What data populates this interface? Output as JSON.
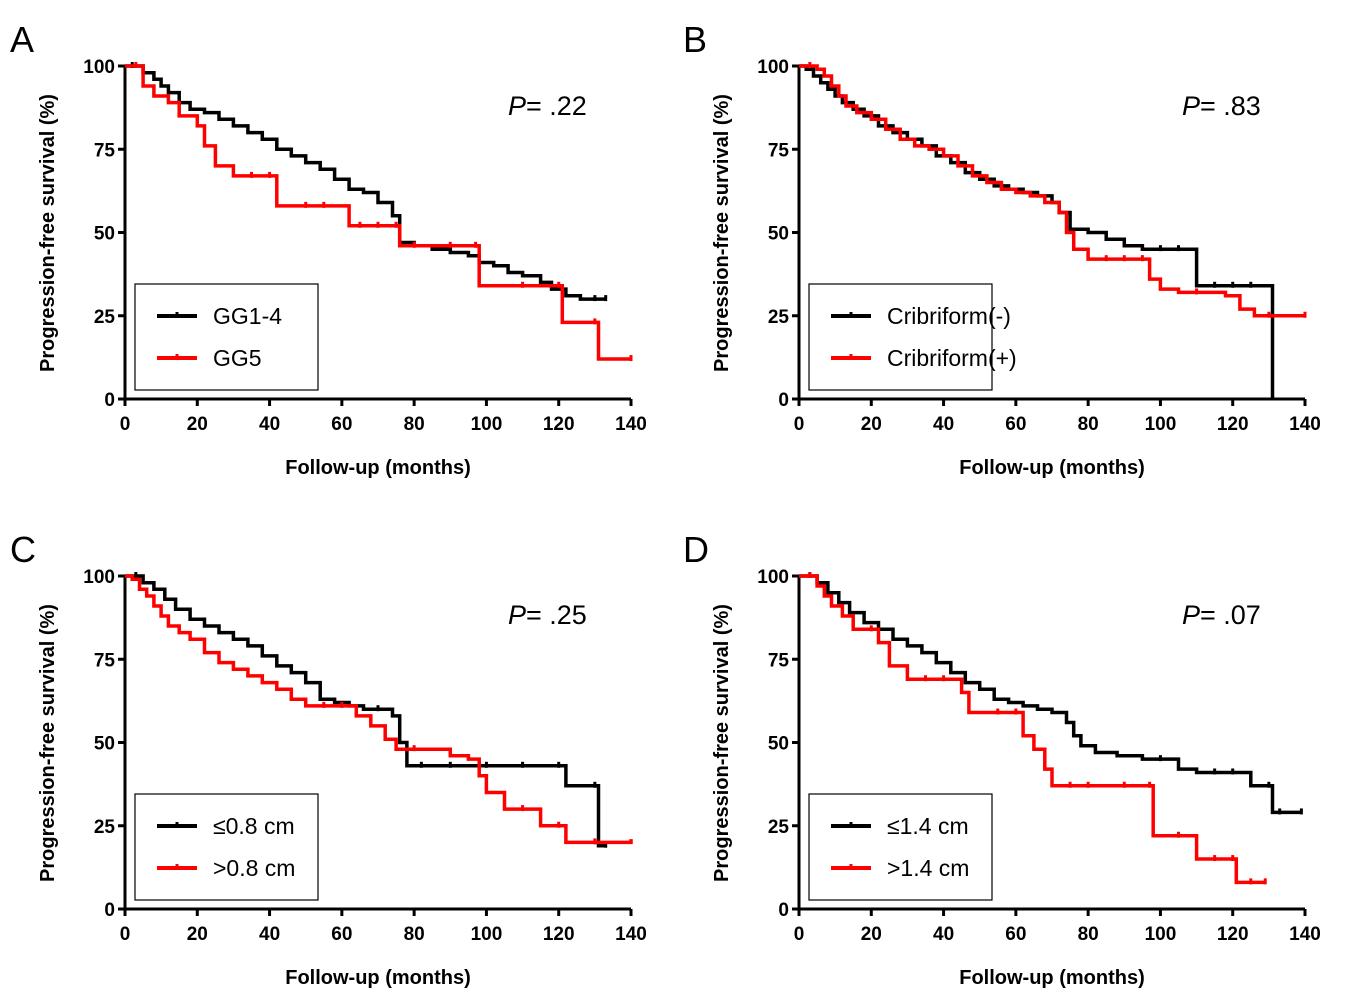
{
  "colors": {
    "black_series": "#000000",
    "red_series": "#ff0000"
  },
  "chart_data": [
    {
      "type": "line",
      "panel": "A",
      "xlabel": "Follow-up (months)",
      "ylabel": "Progression-free survival (%)",
      "xlim": [
        0,
        140
      ],
      "ylim": [
        0,
        100
      ],
      "xticks": [
        0,
        20,
        40,
        60,
        80,
        100,
        120,
        140
      ],
      "yticks": [
        0,
        25,
        50,
        75,
        100
      ],
      "p_prefix": "P",
      "p_value": "= .22",
      "legend_placement": "bottom-left",
      "series": [
        {
          "name": "GG1-4",
          "color": "#000000",
          "x": [
            0,
            2,
            5,
            8,
            10,
            12,
            15,
            18,
            22,
            26,
            30,
            34,
            38,
            42,
            46,
            50,
            54,
            58,
            62,
            66,
            70,
            74,
            76,
            80,
            85,
            90,
            95,
            98,
            102,
            106,
            110,
            115,
            118,
            122,
            126,
            130,
            133
          ],
          "y": [
            100,
            100,
            98,
            96,
            94,
            92,
            89,
            87,
            86,
            84,
            82,
            80,
            78,
            75,
            73,
            71,
            69,
            66,
            63,
            62,
            59,
            55,
            47,
            46,
            45,
            44,
            43,
            41,
            40,
            38,
            37,
            35,
            33,
            31,
            30,
            30,
            30
          ]
        },
        {
          "name": "GG5",
          "color": "#ff0000",
          "x": [
            0,
            3,
            5,
            8,
            12,
            15,
            20,
            22,
            25,
            30,
            35,
            40,
            42,
            50,
            55,
            62,
            65,
            70,
            75,
            76,
            80,
            90,
            97,
            98,
            110,
            120,
            121,
            130,
            131,
            140
          ],
          "y": [
            100,
            100,
            94,
            91,
            89,
            85,
            82,
            76,
            70,
            67,
            67,
            67,
            58,
            58,
            58,
            52,
            52,
            52,
            52,
            46,
            46,
            46,
            46,
            34,
            34,
            34,
            23,
            23,
            12,
            12
          ]
        }
      ]
    },
    {
      "type": "line",
      "panel": "B",
      "xlabel": "Follow-up (months)",
      "ylabel": "Progression-free survival (%)",
      "xlim": [
        0,
        140
      ],
      "ylim": [
        0,
        100
      ],
      "xticks": [
        0,
        20,
        40,
        60,
        80,
        100,
        120,
        140
      ],
      "yticks": [
        0,
        25,
        50,
        75,
        100
      ],
      "p_prefix": "P",
      "p_value": "= .83",
      "legend_placement": "bottom-left",
      "series": [
        {
          "name": "Cribriform(-)",
          "color": "#000000",
          "x": [
            0,
            2,
            4,
            6,
            8,
            10,
            12,
            15,
            18,
            22,
            26,
            30,
            34,
            38,
            42,
            46,
            50,
            54,
            58,
            62,
            66,
            70,
            72,
            75,
            80,
            85,
            90,
            95,
            100,
            105,
            110,
            115,
            120,
            125,
            131
          ],
          "y": [
            100,
            99,
            97,
            95,
            93,
            91,
            89,
            87,
            85,
            82,
            80,
            78,
            76,
            73,
            71,
            68,
            66,
            64,
            63,
            62,
            61,
            59,
            56,
            51,
            50,
            48,
            46,
            45,
            45,
            45,
            34,
            34,
            34,
            34,
            0
          ]
        },
        {
          "name": "Cribriform(+)",
          "color": "#ff0000",
          "x": [
            0,
            3,
            5,
            7,
            9,
            11,
            13,
            16,
            20,
            24,
            28,
            32,
            36,
            40,
            44,
            48,
            52,
            56,
            60,
            64,
            68,
            72,
            74,
            76,
            80,
            85,
            90,
            95,
            97,
            100,
            105,
            110,
            118,
            122,
            126,
            130,
            140
          ],
          "y": [
            100,
            100,
            99,
            97,
            94,
            91,
            88,
            86,
            84,
            81,
            78,
            76,
            75,
            73,
            70,
            67,
            65,
            63,
            62,
            61,
            59,
            56,
            50,
            45,
            42,
            42,
            42,
            42,
            36,
            33,
            32,
            32,
            31,
            27,
            25,
            25,
            25
          ]
        }
      ]
    },
    {
      "type": "line",
      "panel": "C",
      "xlabel": "Follow-up (months)",
      "ylabel": "Progression-free survival (%)",
      "xlim": [
        0,
        140
      ],
      "ylim": [
        0,
        100
      ],
      "xticks": [
        0,
        20,
        40,
        60,
        80,
        100,
        120,
        140
      ],
      "yticks": [
        0,
        25,
        50,
        75,
        100
      ],
      "p_prefix": "P",
      "p_value": "= .25",
      "legend_placement": "bottom-left",
      "series": [
        {
          "name": "≤0.8 cm",
          "color": "#000000",
          "x": [
            0,
            3,
            5,
            8,
            11,
            14,
            18,
            22,
            26,
            30,
            34,
            38,
            42,
            46,
            50,
            54,
            58,
            62,
            66,
            70,
            74,
            76,
            78,
            82,
            90,
            100,
            110,
            120,
            122,
            130,
            131,
            133
          ],
          "y": [
            100,
            100,
            98,
            96,
            93,
            90,
            87,
            85,
            83,
            81,
            79,
            76,
            73,
            71,
            68,
            63,
            62,
            61,
            60,
            60,
            58,
            50,
            43,
            43,
            43,
            43,
            43,
            43,
            37,
            37,
            19,
            19
          ]
        },
        {
          "name": ">0.8 cm",
          "color": "#ff0000",
          "x": [
            0,
            2,
            4,
            6,
            8,
            10,
            12,
            15,
            18,
            22,
            26,
            30,
            34,
            38,
            42,
            46,
            50,
            55,
            60,
            64,
            68,
            72,
            75,
            80,
            90,
            95,
            98,
            100,
            105,
            110,
            115,
            120,
            122,
            130,
            140
          ],
          "y": [
            100,
            99,
            96,
            94,
            91,
            88,
            85,
            83,
            81,
            77,
            74,
            72,
            70,
            68,
            66,
            63,
            61,
            61,
            61,
            58,
            55,
            51,
            48,
            48,
            46,
            45,
            40,
            35,
            30,
            30,
            25,
            25,
            20,
            20,
            21
          ]
        }
      ]
    },
    {
      "type": "line",
      "panel": "D",
      "xlabel": "Follow-up (months)",
      "ylabel": "Progression-free survival (%)",
      "xlim": [
        0,
        140
      ],
      "ylim": [
        0,
        100
      ],
      "xticks": [
        0,
        20,
        40,
        60,
        80,
        100,
        120,
        140
      ],
      "yticks": [
        0,
        25,
        50,
        75,
        100
      ],
      "p_prefix": "P",
      "p_value": "= .07",
      "legend_placement": "bottom-left",
      "series": [
        {
          "name": "≤1.4 cm",
          "color": "#000000",
          "x": [
            0,
            3,
            5,
            8,
            11,
            14,
            18,
            22,
            26,
            30,
            34,
            38,
            42,
            46,
            50,
            54,
            58,
            62,
            66,
            70,
            74,
            76,
            78,
            82,
            88,
            95,
            100,
            105,
            110,
            115,
            120,
            125,
            130,
            131,
            133,
            139
          ],
          "y": [
            100,
            100,
            98,
            95,
            92,
            89,
            86,
            84,
            81,
            79,
            77,
            74,
            71,
            68,
            66,
            63,
            62,
            61,
            60,
            59,
            56,
            52,
            49,
            47,
            46,
            45,
            45,
            42,
            41,
            41,
            41,
            37,
            37,
            29,
            29,
            29
          ]
        },
        {
          "name": ">1.4 cm",
          "color": "#ff0000",
          "x": [
            0,
            3,
            5,
            7,
            9,
            12,
            15,
            20,
            22,
            25,
            30,
            35,
            40,
            45,
            47,
            55,
            60,
            62,
            65,
            68,
            70,
            75,
            80,
            90,
            97,
            98,
            105,
            110,
            115,
            120,
            121,
            125,
            129
          ],
          "y": [
            100,
            100,
            97,
            94,
            91,
            88,
            84,
            84,
            80,
            73,
            69,
            69,
            69,
            65,
            59,
            59,
            59,
            52,
            48,
            42,
            37,
            37,
            37,
            37,
            37,
            22,
            22,
            15,
            15,
            15,
            8,
            8,
            8
          ]
        }
      ]
    }
  ]
}
